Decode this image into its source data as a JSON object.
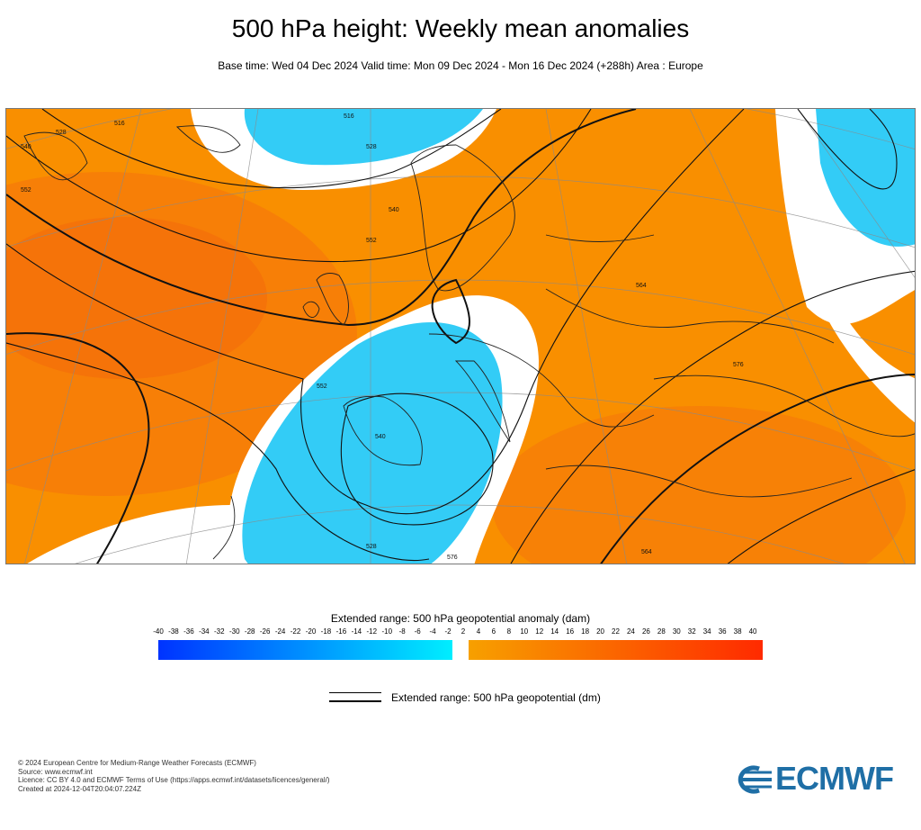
{
  "title": "500 hPa height: Weekly mean anomalies",
  "subtitle": "Base time: Wed 04 Dec 2024 Valid time: Mon 09 Dec 2024 - Mon 16 Dec 2024 (+288h) Area : Europe",
  "map": {
    "area": "Europe",
    "contour_labels": [
      "516",
      "516",
      "528",
      "540",
      "552",
      "540",
      "528",
      "552",
      "564",
      "576",
      "552",
      "564",
      "576",
      "528",
      "540"
    ],
    "colors": {
      "negative_anomaly": "#33ccf6",
      "positive_anomaly": "#f98f00",
      "strong_positive_anomaly": "#f56a0a",
      "near_zero": "#ffffff",
      "land_outline": "#222222",
      "contour": "#111111"
    }
  },
  "legend": {
    "title": "Extended range: 500 hPa geopotential anomaly (dam)",
    "ticks": [
      "-40",
      "-38",
      "-36",
      "-34",
      "-32",
      "-30",
      "-28",
      "-26",
      "-24",
      "-22",
      "-20",
      "-18",
      "-16",
      "-14",
      "-12",
      "-10",
      "-8",
      "-6",
      "-4",
      "-2",
      "2",
      "4",
      "6",
      "8",
      "10",
      "12",
      "14",
      "16",
      "18",
      "20",
      "22",
      "24",
      "26",
      "28",
      "30",
      "32",
      "34",
      "36",
      "38",
      "40"
    ],
    "negative_colors": [
      "#0033ff",
      "#00eeff"
    ],
    "positive_colors": [
      "#f7a000",
      "#ff2a00"
    ],
    "line_label": "Extended range: 500 hPa geopotential (dm)"
  },
  "credits": [
    "© 2024 European Centre for Medium-Range Weather Forecasts (ECMWF)",
    "Source: www.ecmwf.int",
    "Licence: CC BY 4.0 and ECMWF Terms of Use (https://apps.ecmwf.int/datasets/licences/general/)",
    "Created at 2024-12-04T20:04:07.224Z"
  ],
  "logo": {
    "text": "ECMWF",
    "color": "#1f6fa6"
  }
}
